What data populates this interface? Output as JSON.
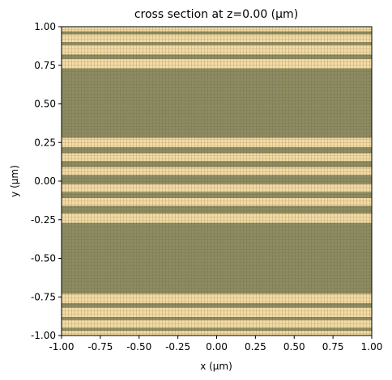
{
  "chart_data": {
    "type": "bands",
    "title": "cross section at z=0.00 (μm)",
    "x_label": "x (μm)",
    "y_label": "y (μm)",
    "background_color": "#8e8c60",
    "color": "#f6dca4",
    "xlim": [
      -1,
      1
    ],
    "ylim": [
      -1,
      1
    ],
    "xticks": [
      {
        "value": -1,
        "label": "-1.00"
      },
      {
        "value": -0.75,
        "label": "-0.75"
      },
      {
        "value": -0.5,
        "label": "-0.50"
      },
      {
        "value": -0.25,
        "label": "-0.25"
      },
      {
        "value": 0,
        "label": "0.00"
      },
      {
        "value": 0.25,
        "label": "0.25"
      },
      {
        "value": 0.5,
        "label": "0.50"
      },
      {
        "value": 0.75,
        "label": "0.75"
      },
      {
        "value": 1,
        "label": "1.00"
      }
    ],
    "yticks": [
      {
        "value": -1,
        "label": "-1.00"
      },
      {
        "value": -0.75,
        "label": "-0.75"
      },
      {
        "value": -0.5,
        "label": "-0.50"
      },
      {
        "value": -0.25,
        "label": "-0.25"
      },
      {
        "value": 0,
        "label": "0.00"
      },
      {
        "value": 0.25,
        "label": "0.25"
      },
      {
        "value": 0.5,
        "label": "0.50"
      },
      {
        "value": 0.75,
        "label": "0.75"
      },
      {
        "value": 1,
        "label": "1.00"
      }
    ],
    "bands": [
      {
        "y0": 0.97,
        "y1": 1.0
      },
      {
        "y0": 0.9,
        "y1": 0.95
      },
      {
        "y0": 0.82,
        "y1": 0.88
      },
      {
        "y0": 0.73,
        "y1": 0.79
      },
      {
        "y0": 0.22,
        "y1": 0.28
      },
      {
        "y0": 0.13,
        "y1": 0.18
      },
      {
        "y0": 0.04,
        "y1": 0.09
      },
      {
        "y0": -0.07,
        "y1": -0.02
      },
      {
        "y0": -0.16,
        "y1": -0.11
      },
      {
        "y0": -0.27,
        "y1": -0.21
      },
      {
        "y0": -0.79,
        "y1": -0.73
      },
      {
        "y0": -0.88,
        "y1": -0.82
      },
      {
        "y0": -0.95,
        "y1": -0.9
      },
      {
        "y0": -1.0,
        "y1": -0.97
      }
    ]
  }
}
